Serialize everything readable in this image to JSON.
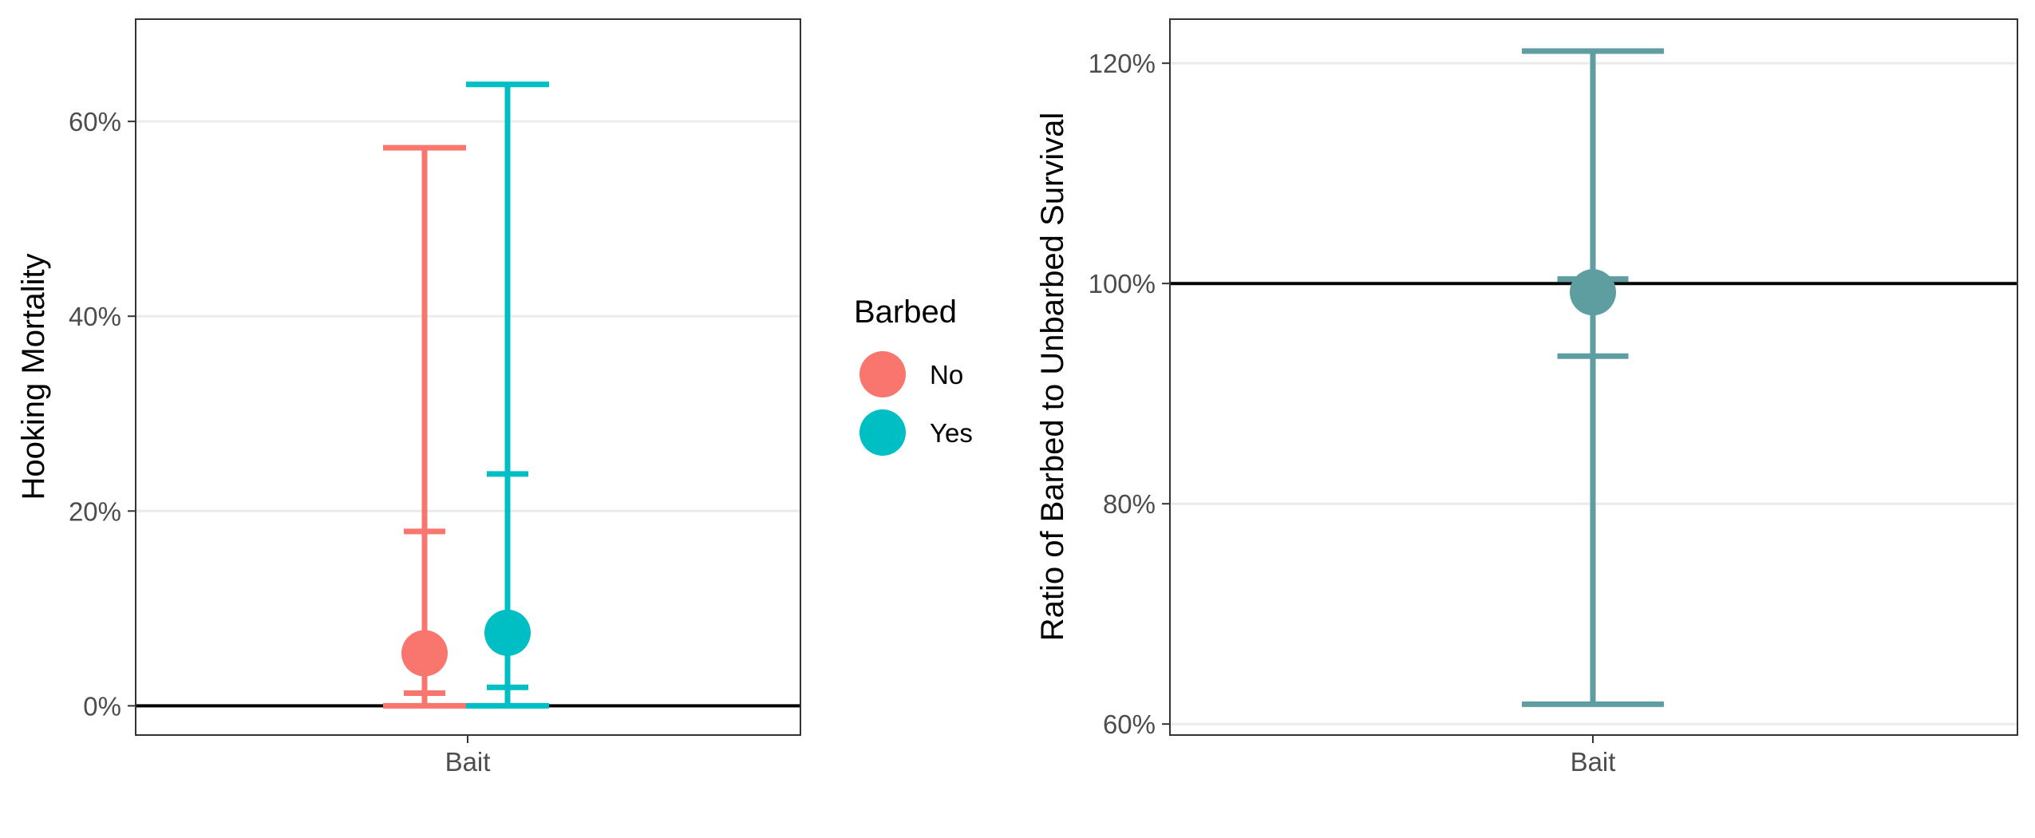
{
  "chart_data": [
    {
      "type": "errorbar",
      "ylabel": "Hooking Mortality",
      "xlabel": "",
      "categories": [
        "Bait"
      ],
      "ylim": [
        -0.03,
        0.705
      ],
      "y_ticks": [
        0,
        0.2,
        0.4,
        0.6
      ],
      "y_tick_labels": [
        "0%",
        "20%",
        "40%",
        "60%"
      ],
      "grid": true,
      "reference_line": 0,
      "legend": {
        "title": "Barbed",
        "position": "right",
        "items": [
          {
            "label": "No",
            "color": "#F8766D"
          },
          {
            "label": "Yes",
            "color": "#00BFC4"
          }
        ]
      },
      "series": [
        {
          "name": "No",
          "color": "#F8766D",
          "category": "Bait",
          "estimate": 0.054,
          "inner": [
            0.013,
            0.179
          ],
          "outer": [
            0.0,
            0.573
          ]
        },
        {
          "name": "Yes",
          "color": "#00BFC4",
          "category": "Bait",
          "estimate": 0.075,
          "inner": [
            0.019,
            0.238
          ],
          "outer": [
            0.0,
            0.638
          ]
        }
      ]
    },
    {
      "type": "errorbar",
      "ylabel": "Ratio of Barbed to Unbarbed Survival",
      "xlabel": "",
      "categories": [
        "Bait"
      ],
      "ylim": [
        0.59,
        1.24
      ],
      "y_ticks": [
        0.6,
        0.8,
        1.0,
        1.2
      ],
      "y_tick_labels": [
        "60%",
        "80%",
        "100%",
        "120%"
      ],
      "grid": true,
      "reference_line": 1.0,
      "series": [
        {
          "color": "#5F9EA0",
          "category": "Bait",
          "estimate": 0.992,
          "inner": [
            0.934,
            1.004
          ],
          "outer": [
            0.618,
            1.211
          ]
        }
      ]
    }
  ]
}
